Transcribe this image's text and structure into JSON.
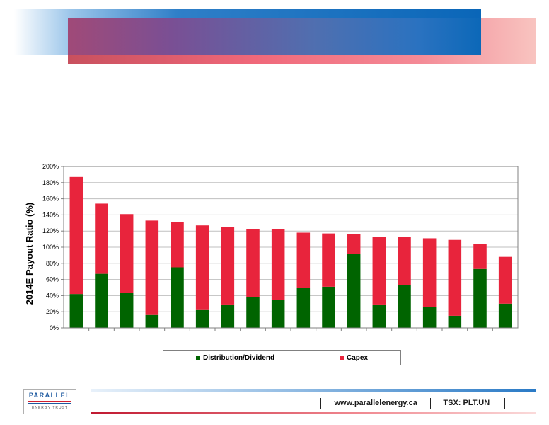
{
  "chart_data": {
    "type": "bar",
    "stacked": true,
    "title": "",
    "xlabel": "",
    "ylabel": "2014E Payout Ratio (%)",
    "ylim": [
      0,
      200
    ],
    "yticks": [
      "0%",
      "20%",
      "40%",
      "60%",
      "80%",
      "100%",
      "120%",
      "140%",
      "160%",
      "180%",
      "200%"
    ],
    "grid": true,
    "legend": "bottom",
    "categories": [
      "",
      "",
      "",
      "",
      "",
      "",
      "",
      "",
      "",
      "",
      "",
      "",
      "",
      "",
      "",
      "",
      "",
      ""
    ],
    "series": [
      {
        "name": "Distribution/Dividend",
        "color": "#006400",
        "values": [
          42,
          67,
          43,
          16,
          75,
          23,
          29,
          38,
          35,
          50,
          51,
          92,
          29,
          53,
          26,
          15,
          73,
          30
        ]
      },
      {
        "name": "Capex",
        "color": "#e8243c",
        "values": [
          145,
          87,
          98,
          117,
          56,
          104,
          96,
          84,
          87,
          68,
          66,
          24,
          84,
          60,
          85,
          94,
          31,
          58
        ]
      }
    ]
  },
  "footer": {
    "url": "www.parallelenergy.ca",
    "ticker": "TSX: PLT.UN"
  },
  "logo": {
    "word": "PARALLEL",
    "sub": "ENERGY TRUST"
  }
}
